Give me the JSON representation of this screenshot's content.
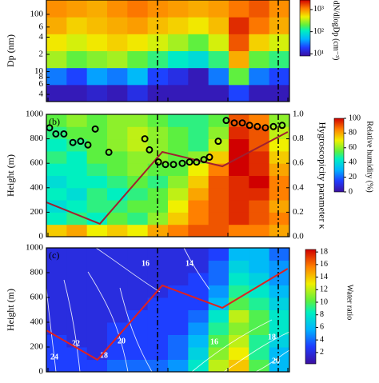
{
  "chart_data": [
    {
      "type": "heatmap",
      "ylabel": "Dp (nm)",
      "ylog": true,
      "xlim": [
        0,
        100
      ],
      "ylim": [
        3,
        178
      ],
      "yticks": [
        100,
        {
          "value": 60,
          "label": "6"
        },
        {
          "value": 40,
          "label": "4"
        },
        {
          "value": 20,
          "label": "2"
        },
        10,
        8,
        6,
        4
      ],
      "z": [
        [
          10,
          10,
          12,
          10,
          15,
          10,
          10,
          10,
          10,
          20,
          10,
          10
        ],
        [
          30,
          20,
          40,
          30,
          50,
          20,
          15,
          10,
          30,
          200,
          30,
          20
        ],
        [
          300,
          200,
          250,
          300,
          200,
          150,
          100,
          80,
          150,
          800,
          200,
          150
        ],
        [
          500,
          400,
          500,
          600,
          500,
          400,
          300,
          200,
          400,
          1500,
          600,
          400
        ],
        [
          800,
          600,
          700,
          800,
          900,
          700,
          600,
          500,
          700,
          2000,
          1200,
          800
        ],
        [
          1000,
          900,
          800,
          1000,
          1200,
          1000,
          900,
          800,
          900,
          1200,
          1500,
          1000
        ]
      ],
      "colorbar": {
        "label": "dN/dlogDp (cm⁻³)",
        "log": true,
        "lim": [
          8,
          2700
        ],
        "ticks": [
          {
            "value": 1000,
            "label": "10³"
          },
          {
            "value": 100,
            "label": "10²"
          },
          {
            "value": 10,
            "label": "10¹"
          }
        ]
      }
    },
    {
      "type": "heatmap",
      "panel_label": "(b)",
      "ylabel": "Height (m)",
      "y2label": "Hygroscopicity parameter κ",
      "xlim": [
        0,
        100
      ],
      "ylim": [
        0,
        1000
      ],
      "yticks": [
        0,
        200,
        400,
        600,
        800,
        1000
      ],
      "y2lim": [
        0,
        1
      ],
      "y2ticks": [
        {
          "value": 0,
          "label": "0.0"
        },
        0.2,
        0.4,
        0.6,
        0.8,
        {
          "value": 1,
          "label": "1.0"
        }
      ],
      "z": [
        [
          75,
          80,
          70,
          75,
          70,
          80,
          85,
          90,
          90,
          85,
          85,
          80
        ],
        [
          45,
          50,
          45,
          55,
          50,
          60,
          75,
          85,
          90,
          95,
          90,
          85
        ],
        [
          40,
          45,
          50,
          50,
          55,
          55,
          70,
          85,
          90,
          95,
          90,
          80
        ],
        [
          45,
          40,
          50,
          45,
          50,
          55,
          65,
          80,
          90,
          95,
          95,
          85
        ],
        [
          40,
          45,
          45,
          50,
          55,
          50,
          60,
          75,
          90,
          95,
          100,
          85
        ],
        [
          45,
          45,
          50,
          55,
          60,
          55,
          55,
          70,
          85,
          100,
          95,
          80
        ],
        [
          50,
          45,
          55,
          55,
          60,
          60,
          55,
          60,
          75,
          100,
          95,
          75
        ],
        [
          45,
          50,
          55,
          60,
          65,
          60,
          55,
          50,
          65,
          100,
          90,
          70
        ],
        [
          50,
          55,
          55,
          60,
          65,
          60,
          55,
          50,
          60,
          95,
          90,
          65
        ],
        [
          55,
          60,
          55,
          60,
          60,
          55,
          50,
          50,
          55,
          90,
          85,
          60
        ]
      ],
      "points": {
        "axis": "y2",
        "color": "#000000",
        "x": [
          1.3,
          3.9,
          7.2,
          10.9,
          14.1,
          17.1,
          20.1,
          25.7,
          40.5,
          42.4,
          46.1,
          49,
          52.3,
          55.9,
          58.9,
          61.8,
          64.8,
          67.1,
          70.7,
          74,
          77.3,
          80.6,
          83.6,
          86.8,
          90.1,
          93.4,
          97
        ],
        "values": [
          0.89,
          0.84,
          0.84,
          0.77,
          0.78,
          0.75,
          0.88,
          0.69,
          0.8,
          0.71,
          0.61,
          0.59,
          0.59,
          0.6,
          0.61,
          0.61,
          0.63,
          0.65,
          0.78,
          0.95,
          0.93,
          0.93,
          0.91,
          0.9,
          0.89,
          0.9,
          0.91
        ]
      },
      "line": {
        "color": "#a02030",
        "x": [
          0,
          22,
          47.7,
          72.4,
          99.3
        ],
        "values": [
          281,
          105,
          693,
          575,
          856
        ]
      },
      "colorbar": {
        "label": "Relative humidity (%)",
        "lim": [
          0,
          100
        ],
        "ticks": [
          0,
          20,
          40,
          60,
          80,
          100
        ]
      }
    },
    {
      "type": "heatmap",
      "panel_label": "(c)",
      "ylabel": "Height (m)",
      "xlim": [
        0,
        100
      ],
      "ylim": [
        0,
        1000
      ],
      "yticks": [
        0,
        200,
        400,
        600,
        800,
        1000
      ],
      "z": [
        [
          3,
          3,
          3,
          4,
          4,
          4,
          5,
          8,
          12,
          14,
          10,
          6
        ],
        [
          3,
          3,
          2,
          3,
          3,
          3,
          4,
          7,
          11,
          13,
          9,
          6
        ],
        [
          3,
          2,
          2,
          3,
          3,
          3,
          4,
          6,
          10,
          12,
          9,
          7
        ],
        [
          2,
          2,
          2,
          3,
          3,
          3,
          3,
          5,
          9,
          11,
          10,
          8
        ],
        [
          2,
          2,
          2,
          2,
          3,
          3,
          3,
          4,
          8,
          12,
          10,
          8
        ],
        [
          2,
          2,
          2,
          2,
          2,
          3,
          3,
          3,
          6,
          10,
          9,
          7
        ],
        [
          2,
          2,
          2,
          2,
          2,
          2,
          3,
          3,
          5,
          9,
          8,
          6
        ],
        [
          2,
          2,
          2,
          2,
          2,
          2,
          2,
          3,
          4,
          8,
          7,
          5
        ],
        [
          2,
          2,
          2,
          2,
          2,
          2,
          2,
          2,
          4,
          7,
          6,
          5
        ],
        [
          2,
          2,
          2,
          2,
          2,
          2,
          2,
          2,
          3,
          6,
          6,
          4
        ]
      ],
      "line": {
        "color": "#e02020",
        "x": [
          0,
          21,
          47.7,
          72.4,
          99.3
        ],
        "values": [
          335,
          97,
          697,
          516,
          832
        ]
      },
      "contour_labels": [
        16,
        14,
        20,
        22,
        24,
        18,
        16,
        18,
        20
      ],
      "colorbar": {
        "label": "Water ratio",
        "lim": [
          0.2,
          18.4
        ],
        "ticks": [
          2,
          4,
          6,
          8,
          10,
          12,
          14,
          16,
          18
        ]
      }
    }
  ]
}
